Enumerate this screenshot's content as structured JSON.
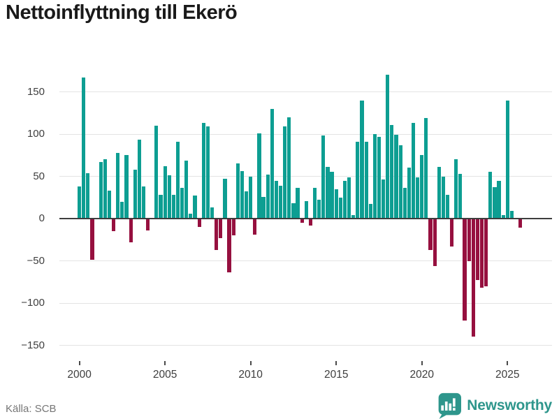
{
  "title": "Nettoinflyttning till Ekerö",
  "source": "Källa: SCB",
  "logo": {
    "text": "Newsworthy",
    "icon": "speech-bubble-barchart-icon"
  },
  "colors": {
    "positive_bar": "#0d9e92",
    "negative_bar": "#96103f",
    "grid": "#e4e4e4",
    "zero_line": "#3e3e3e",
    "axis_text": "#3e3e3e",
    "source_text": "#767676",
    "logo_teal": "#2e968c",
    "title_text": "#1a1a1a"
  },
  "chart_data": {
    "type": "bar",
    "title": "Nettoinflyttning till Ekerö",
    "frequency": "quarterly",
    "x_start": "2000 Q1",
    "x_end": "2025 Q4",
    "x_tick_labels": [
      "2000",
      "2005",
      "2010",
      "2015",
      "2020",
      "2025"
    ],
    "y_ticks": [
      150,
      100,
      50,
      0,
      -50,
      -100,
      -150
    ],
    "y_tick_labels": [
      "150",
      "100",
      "50",
      "0",
      "−50",
      "−100",
      "−150"
    ],
    "ylim": [
      -160,
      182
    ],
    "grid": true,
    "legend": false,
    "xlabel": "",
    "ylabel": "",
    "series": [
      {
        "name": "Nettoinflyttning",
        "values": [
          38,
          167,
          54,
          -49,
          1,
          67,
          70,
          33,
          -15,
          78,
          20,
          75,
          -28,
          58,
          93,
          38,
          -14,
          0,
          110,
          28,
          62,
          51,
          28,
          91,
          36,
          69,
          6,
          27,
          -10,
          113,
          109,
          13,
          -37,
          -23,
          47,
          -64,
          -20,
          65,
          56,
          32,
          50,
          -19,
          101,
          26,
          52,
          130,
          45,
          39,
          109,
          120,
          18,
          36,
          -5,
          21,
          -8,
          36,
          22,
          98,
          61,
          55,
          35,
          25,
          45,
          49,
          4,
          91,
          140,
          91,
          17,
          100,
          97,
          46,
          170,
          111,
          99,
          87,
          36,
          60,
          113,
          49,
          75,
          119,
          -37,
          -56,
          61,
          50,
          28,
          -33,
          70,
          53,
          -121,
          -50,
          -140,
          -73,
          -82,
          -80,
          55,
          37,
          45,
          4,
          140,
          9,
          0,
          -11
        ]
      }
    ]
  }
}
